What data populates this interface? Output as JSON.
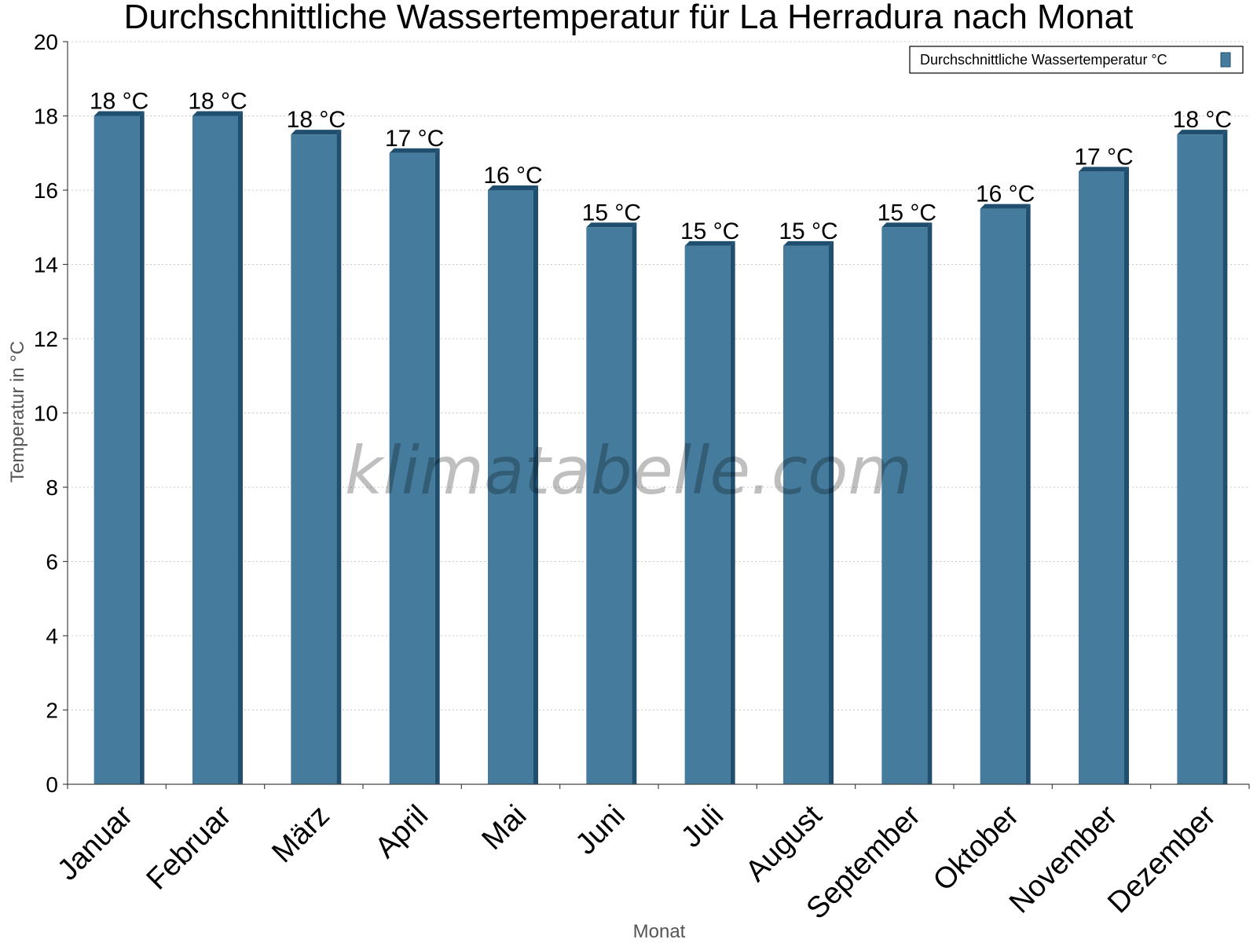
{
  "chart_data": {
    "type": "bar",
    "title": "Durchschnittliche Wassertemperatur für La Herradura nach Monat",
    "xlabel": "Monat",
    "ylabel": "Temperatur in °C",
    "ylim": [
      0,
      20
    ],
    "yticks": [
      0,
      2,
      4,
      6,
      8,
      10,
      12,
      14,
      16,
      18,
      20
    ],
    "grid": true,
    "legend_position": "top-right",
    "categories": [
      "Januar",
      "Februar",
      "März",
      "April",
      "Mai",
      "Juni",
      "Juli",
      "August",
      "September",
      "Oktober",
      "November",
      "Dezember"
    ],
    "series": [
      {
        "name": "Durchschnittliche Wassertemperatur °C",
        "color": "#457b9d",
        "values": [
          18.0,
          18.0,
          17.5,
          17.0,
          16.0,
          15.0,
          14.5,
          14.5,
          15.0,
          15.5,
          16.5,
          17.5
        ],
        "data_labels": [
          "18 °C",
          "18 °C",
          "18 °C",
          "17 °C",
          "16 °C",
          "15 °C",
          "15 °C",
          "15 °C",
          "15 °C",
          "16 °C",
          "17 °C",
          "18 °C"
        ]
      }
    ],
    "watermark": "klimatabelle.com"
  }
}
